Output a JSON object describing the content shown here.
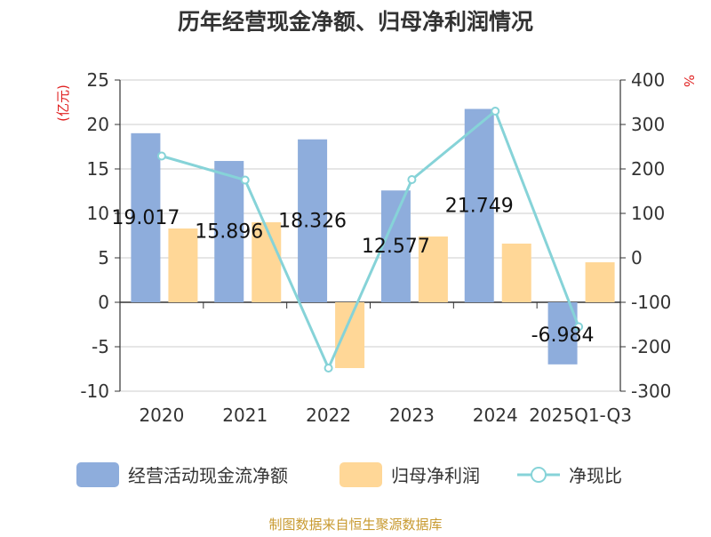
{
  "chart_data": {
    "type": "bar",
    "title": "历年经营现金净额、归母净利润情况",
    "categories": [
      "2020",
      "2021",
      "2022",
      "2023",
      "2024",
      "2025Q1-Q3"
    ],
    "series": [
      {
        "name": "经营活动现金流净额",
        "type": "bar",
        "axis": "left",
        "color": "#8eaddc",
        "values": [
          19.017,
          15.896,
          18.326,
          12.577,
          21.749,
          -6.984
        ],
        "data_labels": [
          "19.017",
          "15.896",
          "18.326",
          "12.577",
          "21.749",
          "-6.984"
        ]
      },
      {
        "name": "归母净利润",
        "type": "bar",
        "axis": "left",
        "color": "#ffd797",
        "values": [
          8.3,
          9.0,
          -7.4,
          7.4,
          6.6,
          4.5
        ]
      },
      {
        "name": "净现比",
        "type": "line",
        "axis": "right",
        "color": "#86d3d8",
        "values": [
          229,
          175,
          -248,
          176,
          330,
          -155
        ]
      }
    ],
    "left_axis": {
      "label": "(亿元)",
      "ylim": [
        -10,
        25
      ],
      "ticks": [
        -10,
        -5,
        0,
        5,
        10,
        15,
        20,
        25
      ]
    },
    "right_axis": {
      "label": "%",
      "ylim": [
        -300,
        400
      ],
      "ticks": [
        -300,
        -200,
        -100,
        0,
        100,
        200,
        300,
        400
      ]
    },
    "grid": true,
    "legend": "bottom",
    "label_color": "#e02020"
  },
  "footer": {
    "source": "制图数据来自恒生聚源数据库",
    "color": "#c89a30"
  }
}
